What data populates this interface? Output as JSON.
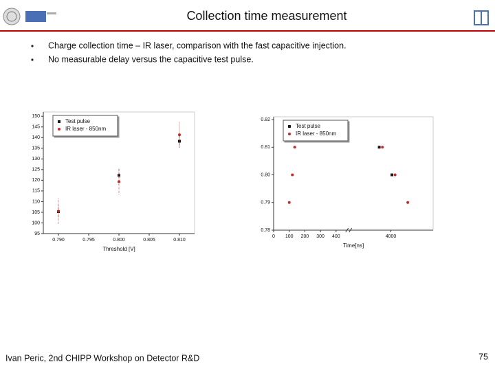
{
  "header": {
    "title": "Collection time measurement"
  },
  "bullets": [
    "Charge collection time – IR laser, comparison with the fast capacitive injection.",
    "No measurable delay versus the capacitive test pulse."
  ],
  "footer": {
    "text": "Ivan Peric, 2nd CHIPP Workshop on Detector R&D",
    "page": "75"
  },
  "chart_data": [
    {
      "type": "scatter",
      "x_label": "Threshold [V]",
      "xlim": [
        0.7875,
        0.8125
      ],
      "xticks": [
        {
          "value": 0.79,
          "label": "0.790"
        },
        0.795,
        {
          "value": 0.8,
          "label": "0.800"
        },
        0.805,
        {
          "value": 0.81,
          "label": "0.810"
        }
      ],
      "ylim": [
        95,
        152
      ],
      "yticks": [
        95,
        100,
        105,
        110,
        115,
        120,
        125,
        130,
        135,
        140,
        145,
        150
      ],
      "legend": "upper left",
      "series": [
        {
          "name": "Test pulse",
          "color": "#1a1a1a",
          "x": [
            0.79,
            0.8,
            0.81
          ],
          "values": [
            105.3,
            122.3,
            138.3
          ],
          "errors": [
            3,
            3,
            3
          ]
        },
        {
          "name": "IR laser - 850nm",
          "color": "#c62828",
          "x": [
            0.79,
            0.8,
            0.81
          ],
          "values": [
            105.5,
            119.3,
            141.3
          ],
          "errors": [
            6,
            6,
            6
          ]
        }
      ]
    },
    {
      "type": "scatter",
      "x_label": "Time[ns]",
      "xlim": [
        0,
        4400
      ],
      "xbreak": [
        470,
        3650
      ],
      "xticks": [
        0,
        100,
        200,
        300,
        400,
        4000
      ],
      "ylim": [
        0.78,
        0.821
      ],
      "yticks": [
        0.78,
        0.79,
        {
          "value": 0.8,
          "label": "0.80"
        },
        0.81,
        0.82
      ],
      "legend": "upper left",
      "series": [
        {
          "name": "Test pulse",
          "color": "#1a1a1a",
          "x": [
            3890,
            4010
          ],
          "values": [
            0.81,
            0.8
          ]
        },
        {
          "name": "IR laser - 850nm",
          "color": "#c62828",
          "x": [
            100,
            120,
            135,
            3920,
            4040,
            4160
          ],
          "values": [
            0.79,
            0.8,
            0.81,
            0.81,
            0.8,
            0.79
          ]
        }
      ]
    }
  ]
}
